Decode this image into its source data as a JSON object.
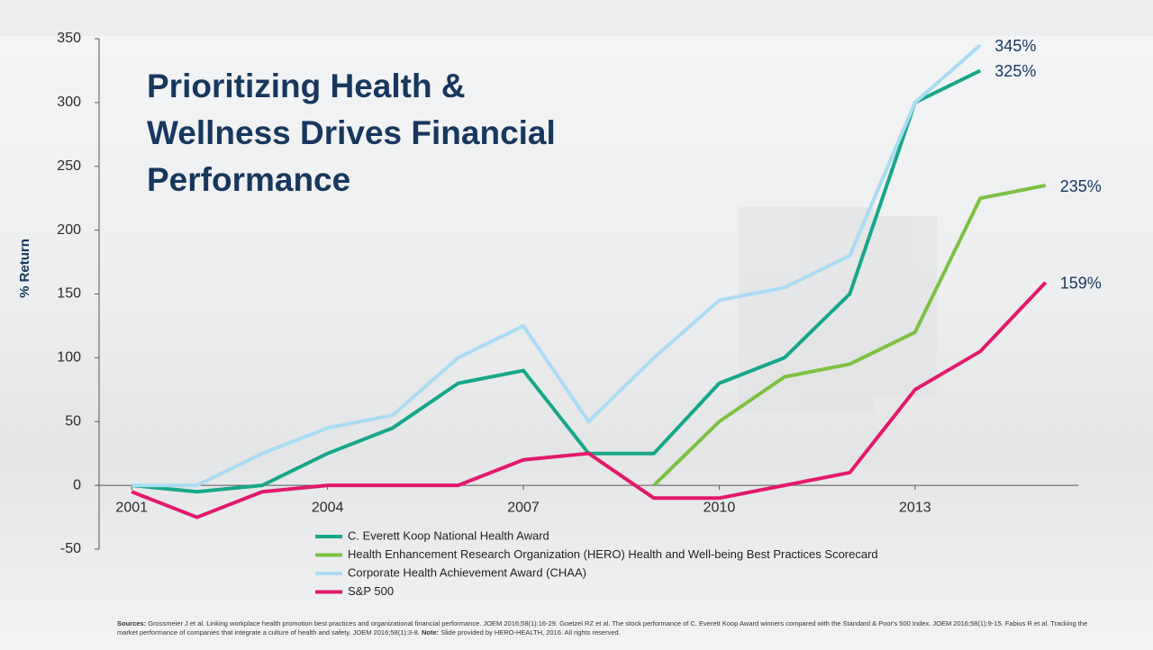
{
  "chart_data": {
    "type": "line",
    "title_lines": [
      "Prioritizing Health &",
      "Wellness Drives Financial",
      "Performance"
    ],
    "y_label": "% Return",
    "x": [
      2001,
      2002,
      2003,
      2004,
      2005,
      2006,
      2007,
      2008,
      2009,
      2010,
      2011,
      2012,
      2013,
      2014,
      2015
    ],
    "xlim": [
      2000.5,
      2015.5
    ],
    "xticks": [
      2001,
      2004,
      2007,
      2010,
      2013
    ],
    "ylim": [
      -50,
      350
    ],
    "yticks": [
      -50,
      0,
      50,
      100,
      150,
      200,
      250,
      300,
      350
    ],
    "series": [
      {
        "name": "C. Everett Koop National Health Award",
        "color": "#17a68a",
        "values": [
          0,
          -5,
          0,
          25,
          45,
          80,
          90,
          25,
          25,
          80,
          100,
          150,
          300,
          325,
          null
        ],
        "end_label": "325%"
      },
      {
        "name": "Health Enhancement Research Organization (HERO) Health and Well-being Best Practices Scorecard",
        "color": "#7cc142",
        "values": [
          null,
          null,
          null,
          null,
          null,
          null,
          null,
          null,
          0,
          50,
          85,
          95,
          120,
          225,
          235
        ],
        "end_label": "235%"
      },
      {
        "name": "Corporate Health Achievement Award (CHAA)",
        "color": "#a9dcf4",
        "values": [
          0,
          0,
          25,
          45,
          55,
          100,
          125,
          50,
          100,
          145,
          155,
          180,
          300,
          345,
          null
        ],
        "end_label": "345%"
      },
      {
        "name": "S&P 500",
        "color": "#e2196d",
        "values": [
          -5,
          -25,
          -5,
          0,
          0,
          0,
          20,
          25,
          -10,
          -10,
          0,
          10,
          75,
          105,
          159
        ],
        "end_label": "159%"
      }
    ]
  },
  "footer": {
    "sources_label": "Sources:",
    "sources_text": " Grossmeier J et al. Linking workplace health promotion best practices and organizational financial performance. JOEM 2016;58(1):16-29. Goetzel RZ et al. The stock performance of C. Everett Koop Award winners compared with the Standard & Poor's 500 Index. JOEM 2016;58(1):9-15. Fabius R et al. Tracking the market performance of companies that integrate a culture of health and safety. JOEM 2016;58(1):3-8. ",
    "note_label": "Note:",
    "note_text": " Slide provided by HERO-HEALTH, 2016. All rights reserved."
  }
}
